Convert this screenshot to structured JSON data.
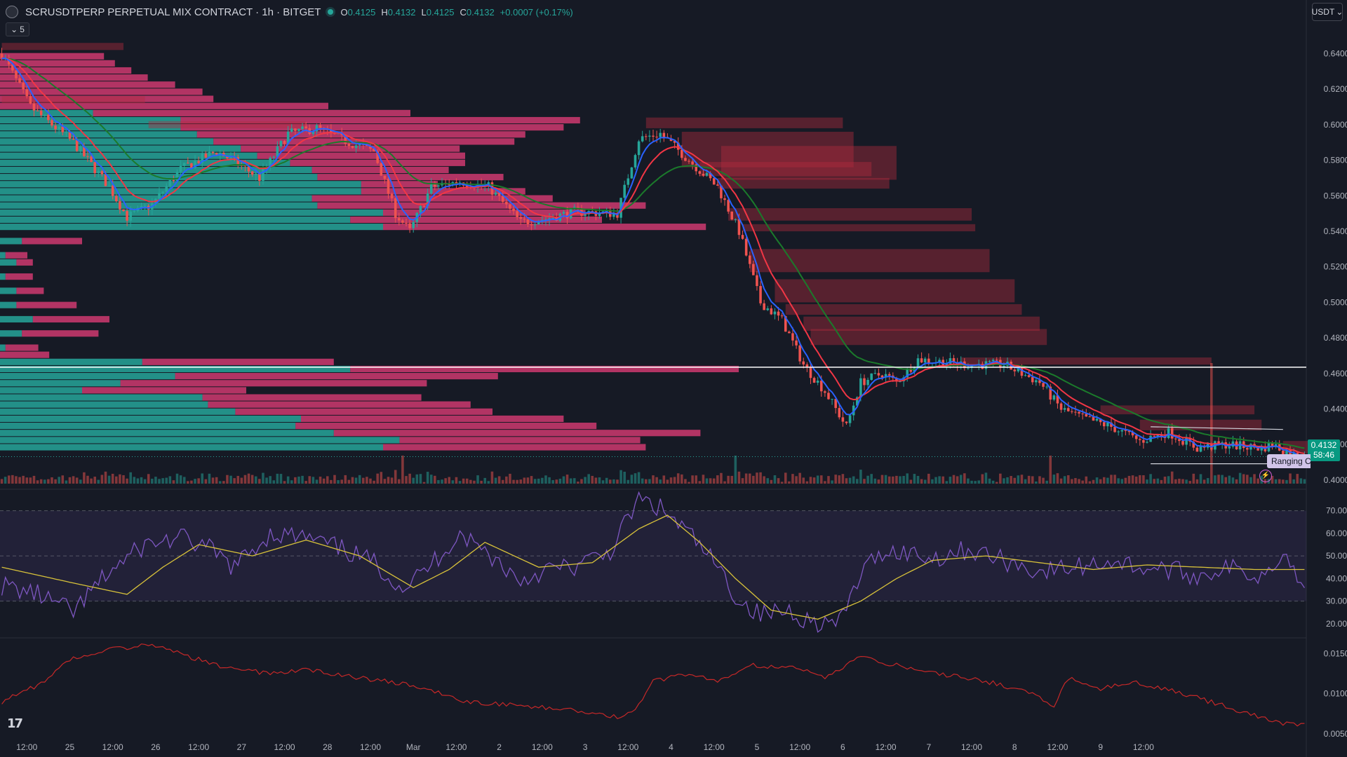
{
  "header": {
    "title": "SCRUSDTPERP PERPETUAL MIX CONTRACT · 1h · BITGET",
    "ohlc": [
      {
        "k": "O",
        "v": "0.4125"
      },
      {
        "k": "H",
        "v": "0.4132"
      },
      {
        "k": "L",
        "v": "0.4125"
      },
      {
        "k": "C",
        "v": "0.4132"
      }
    ],
    "change": "+0.0007 (+0.17%)",
    "indicator_count": "5",
    "currency": "USDT"
  },
  "price_tag": {
    "price": "0.4132",
    "countdown": "58:46"
  },
  "ranging_label": "Ranging C",
  "colors": {
    "background": "#161a25",
    "up": "#26a69a",
    "down": "#ef5350",
    "ema_fast": "#2962ff",
    "ema_mid": "#f23645",
    "ema_slow": "#1b7a2b",
    "rsi": "#7e57c2",
    "rsi_ma": "#d8c23a",
    "lower": "#c62828"
  },
  "chart_data": [
    {
      "type": "candlestick",
      "pane": "price",
      "ylim": [
        0.398,
        0.652
      ],
      "y_ticks": [
        "0.6400",
        "0.6200",
        "0.6000",
        "0.5800",
        "0.5600",
        "0.5400",
        "0.5200",
        "0.5000",
        "0.4800",
        "0.4600",
        "0.4400",
        "0.4200",
        "0.4000"
      ],
      "x_ticks": [
        "12:00",
        "25",
        "12:00",
        "26",
        "12:00",
        "27",
        "12:00",
        "28",
        "12:00",
        "Mar",
        "12:00",
        "2",
        "12:00",
        "3",
        "12:00",
        "4",
        "12:00",
        "5",
        "12:00",
        "6",
        "12:00",
        "7",
        "12:00",
        "8",
        "12:00",
        "9",
        "12:00"
      ],
      "x_range": [
        "Feb 24 05:00",
        "Mar 9 12:00"
      ],
      "path": [
        [
          0,
          0.64
        ],
        [
          8,
          0.61
        ],
        [
          20,
          0.59
        ],
        [
          30,
          0.565
        ],
        [
          35,
          0.548
        ],
        [
          42,
          0.555
        ],
        [
          50,
          0.575
        ],
        [
          60,
          0.585
        ],
        [
          66,
          0.578
        ],
        [
          72,
          0.57
        ],
        [
          80,
          0.595
        ],
        [
          88,
          0.598
        ],
        [
          97,
          0.59
        ],
        [
          104,
          0.585
        ],
        [
          110,
          0.55
        ],
        [
          114,
          0.54
        ],
        [
          120,
          0.565
        ],
        [
          128,
          0.568
        ],
        [
          136,
          0.565
        ],
        [
          145,
          0.545
        ],
        [
          152,
          0.547
        ],
        [
          160,
          0.551
        ],
        [
          172,
          0.55
        ],
        [
          178,
          0.592
        ],
        [
          184,
          0.595
        ],
        [
          192,
          0.58
        ],
        [
          200,
          0.565
        ],
        [
          206,
          0.54
        ],
        [
          212,
          0.5
        ],
        [
          218,
          0.49
        ],
        [
          224,
          0.465
        ],
        [
          230,
          0.45
        ],
        [
          236,
          0.43
        ],
        [
          240,
          0.455
        ],
        [
          246,
          0.46
        ],
        [
          250,
          0.455
        ],
        [
          256,
          0.468
        ],
        [
          270,
          0.465
        ],
        [
          280,
          0.465
        ],
        [
          290,
          0.455
        ],
        [
          296,
          0.44
        ],
        [
          302,
          0.435
        ],
        [
          310,
          0.43
        ],
        [
          318,
          0.422
        ],
        [
          326,
          0.427
        ],
        [
          334,
          0.418
        ],
        [
          342,
          0.42
        ],
        [
          352,
          0.418
        ],
        [
          355,
          0.42
        ],
        [
          362,
          0.413
        ]
      ],
      "horizontal_line": 0.4635,
      "last_price": 0.4132
    },
    {
      "type": "volume_profile",
      "pane": "price",
      "rows": [
        {
          "price": 0.6385,
          "buy": 0,
          "sell": 19
        },
        {
          "price": 0.6345,
          "buy": 0,
          "sell": 21
        },
        {
          "price": 0.6305,
          "buy": 0,
          "sell": 24
        },
        {
          "price": 0.6265,
          "buy": 0,
          "sell": 27
        },
        {
          "price": 0.6225,
          "buy": 0,
          "sell": 32
        },
        {
          "price": 0.6185,
          "buy": 0,
          "sell": 37
        },
        {
          "price": 0.6145,
          "buy": 0,
          "sell": 39
        },
        {
          "price": 0.6105,
          "buy": 0,
          "sell": 60
        },
        {
          "price": 0.6065,
          "buy": 17,
          "sell": 58
        },
        {
          "price": 0.6025,
          "buy": 33,
          "sell": 73
        },
        {
          "price": 0.5985,
          "buy": 33,
          "sell": 70
        },
        {
          "price": 0.5945,
          "buy": 36,
          "sell": 60
        },
        {
          "price": 0.5905,
          "buy": 39,
          "sell": 55
        },
        {
          "price": 0.5865,
          "buy": 44,
          "sell": 40
        },
        {
          "price": 0.5825,
          "buy": 47,
          "sell": 38
        },
        {
          "price": 0.5785,
          "buy": 53,
          "sell": 32
        },
        {
          "price": 0.5745,
          "buy": 57,
          "sell": 25
        },
        {
          "price": 0.5705,
          "buy": 58,
          "sell": 34
        },
        {
          "price": 0.5665,
          "buy": 66,
          "sell": 14
        },
        {
          "price": 0.5625,
          "buy": 66,
          "sell": 30
        },
        {
          "price": 0.5585,
          "buy": 57,
          "sell": 44
        },
        {
          "price": 0.5545,
          "buy": 58,
          "sell": 60
        },
        {
          "price": 0.5505,
          "buy": 70,
          "sell": 37
        },
        {
          "price": 0.5465,
          "buy": 64,
          "sell": 46
        },
        {
          "price": 0.5425,
          "buy": 70,
          "sell": 59
        },
        {
          "price": 0.5345,
          "buy": 4,
          "sell": 11
        },
        {
          "price": 0.5265,
          "buy": 1,
          "sell": 4
        },
        {
          "price": 0.5225,
          "buy": 3,
          "sell": 3
        },
        {
          "price": 0.5145,
          "buy": 1,
          "sell": 5
        },
        {
          "price": 0.5065,
          "buy": 3,
          "sell": 5
        },
        {
          "price": 0.4985,
          "buy": 3,
          "sell": 11
        },
        {
          "price": 0.4905,
          "buy": 6,
          "sell": 14
        },
        {
          "price": 0.4825,
          "buy": 4,
          "sell": 14
        },
        {
          "price": 0.4745,
          "buy": 1,
          "sell": 6
        },
        {
          "price": 0.4705,
          "buy": 0,
          "sell": 9
        },
        {
          "price": 0.4665,
          "buy": 26,
          "sell": 35
        },
        {
          "price": 0.4625,
          "buy": 64,
          "sell": 71
        },
        {
          "price": 0.4585,
          "buy": 32,
          "sell": 59
        },
        {
          "price": 0.4545,
          "buy": 22,
          "sell": 56
        },
        {
          "price": 0.4505,
          "buy": 15,
          "sell": 30
        },
        {
          "price": 0.4465,
          "buy": 37,
          "sell": 40
        },
        {
          "price": 0.4425,
          "buy": 38,
          "sell": 48
        },
        {
          "price": 0.4385,
          "buy": 43,
          "sell": 47
        },
        {
          "price": 0.4345,
          "buy": 55,
          "sell": 48
        },
        {
          "price": 0.4305,
          "buy": 54,
          "sell": 55
        },
        {
          "price": 0.4265,
          "buy": 61,
          "sell": 67
        },
        {
          "price": 0.4225,
          "buy": 73,
          "sell": 44
        },
        {
          "price": 0.4185,
          "buy": 70,
          "sell": 48
        }
      ]
    },
    {
      "type": "area",
      "pane": "supply_zones",
      "zones": [
        {
          "t0": 0,
          "t1": 34,
          "p0": 0.642,
          "p1": 0.646
        },
        {
          "t0": 0,
          "t1": 40,
          "p0": 0.612,
          "p1": 0.616
        },
        {
          "t0": 41,
          "t1": 85,
          "p0": 0.598,
          "p1": 0.602
        },
        {
          "t0": 180,
          "t1": 235,
          "p0": 0.598,
          "p1": 0.604
        },
        {
          "t0": 190,
          "t1": 238,
          "p0": 0.576,
          "p1": 0.596
        },
        {
          "t0": 195,
          "t1": 243,
          "p0": 0.571,
          "p1": 0.579
        },
        {
          "t0": 201,
          "t1": 250,
          "p0": 0.569,
          "p1": 0.588
        },
        {
          "t0": 200,
          "t1": 248,
          "p0": 0.564,
          "p1": 0.57
        },
        {
          "t0": 203,
          "t1": 271,
          "p0": 0.546,
          "p1": 0.553
        },
        {
          "t0": 207,
          "t1": 272,
          "p0": 0.54,
          "p1": 0.544
        },
        {
          "t0": 209,
          "t1": 276,
          "p0": 0.517,
          "p1": 0.53
        },
        {
          "t0": 216,
          "t1": 283,
          "p0": 0.5,
          "p1": 0.513
        },
        {
          "t0": 219,
          "t1": 285,
          "p0": 0.493,
          "p1": 0.499
        },
        {
          "t0": 224,
          "t1": 290,
          "p0": 0.484,
          "p1": 0.492
        },
        {
          "t0": 226,
          "t1": 292,
          "p0": 0.476,
          "p1": 0.485
        },
        {
          "t0": 268,
          "t1": 338,
          "p0": 0.465,
          "p1": 0.469
        },
        {
          "t0": 307,
          "t1": 350,
          "p0": 0.437,
          "p1": 0.442
        },
        {
          "t0": 318,
          "t1": 352,
          "p0": 0.428,
          "p1": 0.434
        },
        {
          "t0": 358,
          "t1": 370,
          "p0": 0.415,
          "p1": 0.422
        }
      ]
    },
    {
      "type": "line",
      "pane": "rsi",
      "ylim": [
        15,
        77
      ],
      "y_ticks": [
        "70.00",
        "60.00",
        "50.00",
        "40.00",
        "30.00",
        "20.00"
      ],
      "bands": {
        "upper": 70,
        "middle": 50,
        "lower": 30
      },
      "series": [
        {
          "path": [
            [
              0,
              37
            ],
            [
              10,
              33
            ],
            [
              20,
              25
            ],
            [
              30,
              43
            ],
            [
              40,
              55
            ],
            [
              50,
              58
            ],
            [
              58,
              53
            ],
            [
              65,
              45
            ],
            [
              75,
              60
            ],
            [
              85,
              58
            ],
            [
              95,
              53
            ],
            [
              104,
              47
            ],
            [
              112,
              36
            ],
            [
              118,
              43
            ],
            [
              128,
              60
            ],
            [
              136,
              51
            ],
            [
              145,
              39
            ],
            [
              152,
              44
            ],
            [
              160,
              45
            ],
            [
              170,
              52
            ],
            [
              178,
              75
            ],
            [
              184,
              71
            ],
            [
              192,
              60
            ],
            [
              200,
              45
            ],
            [
              206,
              30
            ],
            [
              212,
              24
            ],
            [
              220,
              26
            ],
            [
              226,
              21
            ],
            [
              234,
              20
            ],
            [
              240,
              42
            ],
            [
              246,
              52
            ],
            [
              252,
              52
            ],
            [
              260,
              49
            ],
            [
              270,
              53
            ],
            [
              280,
              48
            ],
            [
              290,
              43
            ],
            [
              300,
              45
            ],
            [
              310,
              48
            ],
            [
              318,
              45
            ],
            [
              326,
              44
            ],
            [
              334,
              41
            ],
            [
              342,
              45
            ],
            [
              352,
              41
            ],
            [
              358,
              53
            ],
            [
              362,
              40
            ]
          ]
        },
        {
          "path": [
            [
              0,
              45
            ],
            [
              20,
              38
            ],
            [
              35,
              33
            ],
            [
              45,
              45
            ],
            [
              55,
              55
            ],
            [
              70,
              50
            ],
            [
              85,
              57
            ],
            [
              100,
              50
            ],
            [
              115,
              36
            ],
            [
              125,
              44
            ],
            [
              135,
              56
            ],
            [
              150,
              45
            ],
            [
              165,
              47
            ],
            [
              178,
              62
            ],
            [
              186,
              68
            ],
            [
              195,
              56
            ],
            [
              205,
              40
            ],
            [
              215,
              26
            ],
            [
              228,
              22
            ],
            [
              240,
              30
            ],
            [
              250,
              40
            ],
            [
              260,
              48
            ],
            [
              275,
              50
            ],
            [
              290,
              47
            ],
            [
              305,
              44
            ],
            [
              320,
              46
            ],
            [
              335,
              45
            ],
            [
              350,
              44
            ],
            [
              362,
              44
            ]
          ]
        }
      ]
    },
    {
      "type": "line",
      "pane": "lower",
      "ylim": [
        0.0049,
        0.0166
      ],
      "y_ticks": [
        "0.0150",
        "0.0100",
        "0.0050"
      ],
      "series": [
        {
          "path": [
            [
              0,
              0.009
            ],
            [
              10,
              0.011
            ],
            [
              20,
              0.0145
            ],
            [
              30,
              0.0155
            ],
            [
              42,
              0.0162
            ],
            [
              50,
              0.015
            ],
            [
              60,
              0.0135
            ],
            [
              75,
              0.0125
            ],
            [
              85,
              0.013
            ],
            [
              100,
              0.012
            ],
            [
              115,
              0.011
            ],
            [
              130,
              0.009
            ],
            [
              145,
              0.0085
            ],
            [
              160,
              0.008
            ],
            [
              170,
              0.007
            ],
            [
              176,
              0.0075
            ],
            [
              182,
              0.0115
            ],
            [
              192,
              0.0125
            ],
            [
              200,
              0.0115
            ],
            [
              210,
              0.0135
            ],
            [
              222,
              0.0132
            ],
            [
              230,
              0.012
            ],
            [
              240,
              0.0145
            ],
            [
              250,
              0.0135
            ],
            [
              262,
              0.0125
            ],
            [
              275,
              0.0115
            ],
            [
              285,
              0.0105
            ],
            [
              294,
              0.0085
            ],
            [
              298,
              0.012
            ],
            [
              306,
              0.0105
            ],
            [
              316,
              0.0115
            ],
            [
              330,
              0.01
            ],
            [
              345,
              0.008
            ],
            [
              356,
              0.0065
            ],
            [
              362,
              0.006
            ]
          ]
        }
      ]
    }
  ]
}
